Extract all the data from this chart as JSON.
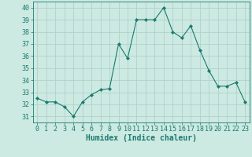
{
  "x": [
    0,
    1,
    2,
    3,
    4,
    5,
    6,
    7,
    8,
    9,
    10,
    11,
    12,
    13,
    14,
    15,
    16,
    17,
    18,
    19,
    20,
    21,
    22,
    23
  ],
  "y": [
    32.5,
    32.2,
    32.2,
    31.8,
    31.0,
    32.2,
    32.8,
    33.2,
    33.3,
    37.0,
    35.8,
    39.0,
    39.0,
    39.0,
    40.0,
    38.0,
    37.5,
    38.5,
    36.5,
    34.8,
    33.5,
    33.5,
    33.8,
    32.2
  ],
  "line_color": "#1a7a6e",
  "marker": "D",
  "marker_size": 2.2,
  "xlabel": "Humidex (Indice chaleur)",
  "xlim": [
    -0.5,
    23.5
  ],
  "ylim": [
    30.5,
    40.5
  ],
  "yticks": [
    31,
    32,
    33,
    34,
    35,
    36,
    37,
    38,
    39,
    40
  ],
  "xticks": [
    0,
    1,
    2,
    3,
    4,
    5,
    6,
    7,
    8,
    9,
    10,
    11,
    12,
    13,
    14,
    15,
    16,
    17,
    18,
    19,
    20,
    21,
    22,
    23
  ],
  "xtick_labels": [
    "0",
    "1",
    "2",
    "3",
    "4",
    "5",
    "6",
    "7",
    "8",
    "9",
    "10",
    "11",
    "12",
    "13",
    "14",
    "15",
    "16",
    "17",
    "18",
    "19",
    "20",
    "21",
    "22",
    "23"
  ],
  "bg_color": "#cce9e2",
  "grid_color": "#aacfc8",
  "line_grid_color": "#c0ddd8",
  "tick_color": "#1a7a6e",
  "label_color": "#1a7a6e",
  "tick_fontsize": 6.0,
  "xlabel_fontsize": 7.0
}
